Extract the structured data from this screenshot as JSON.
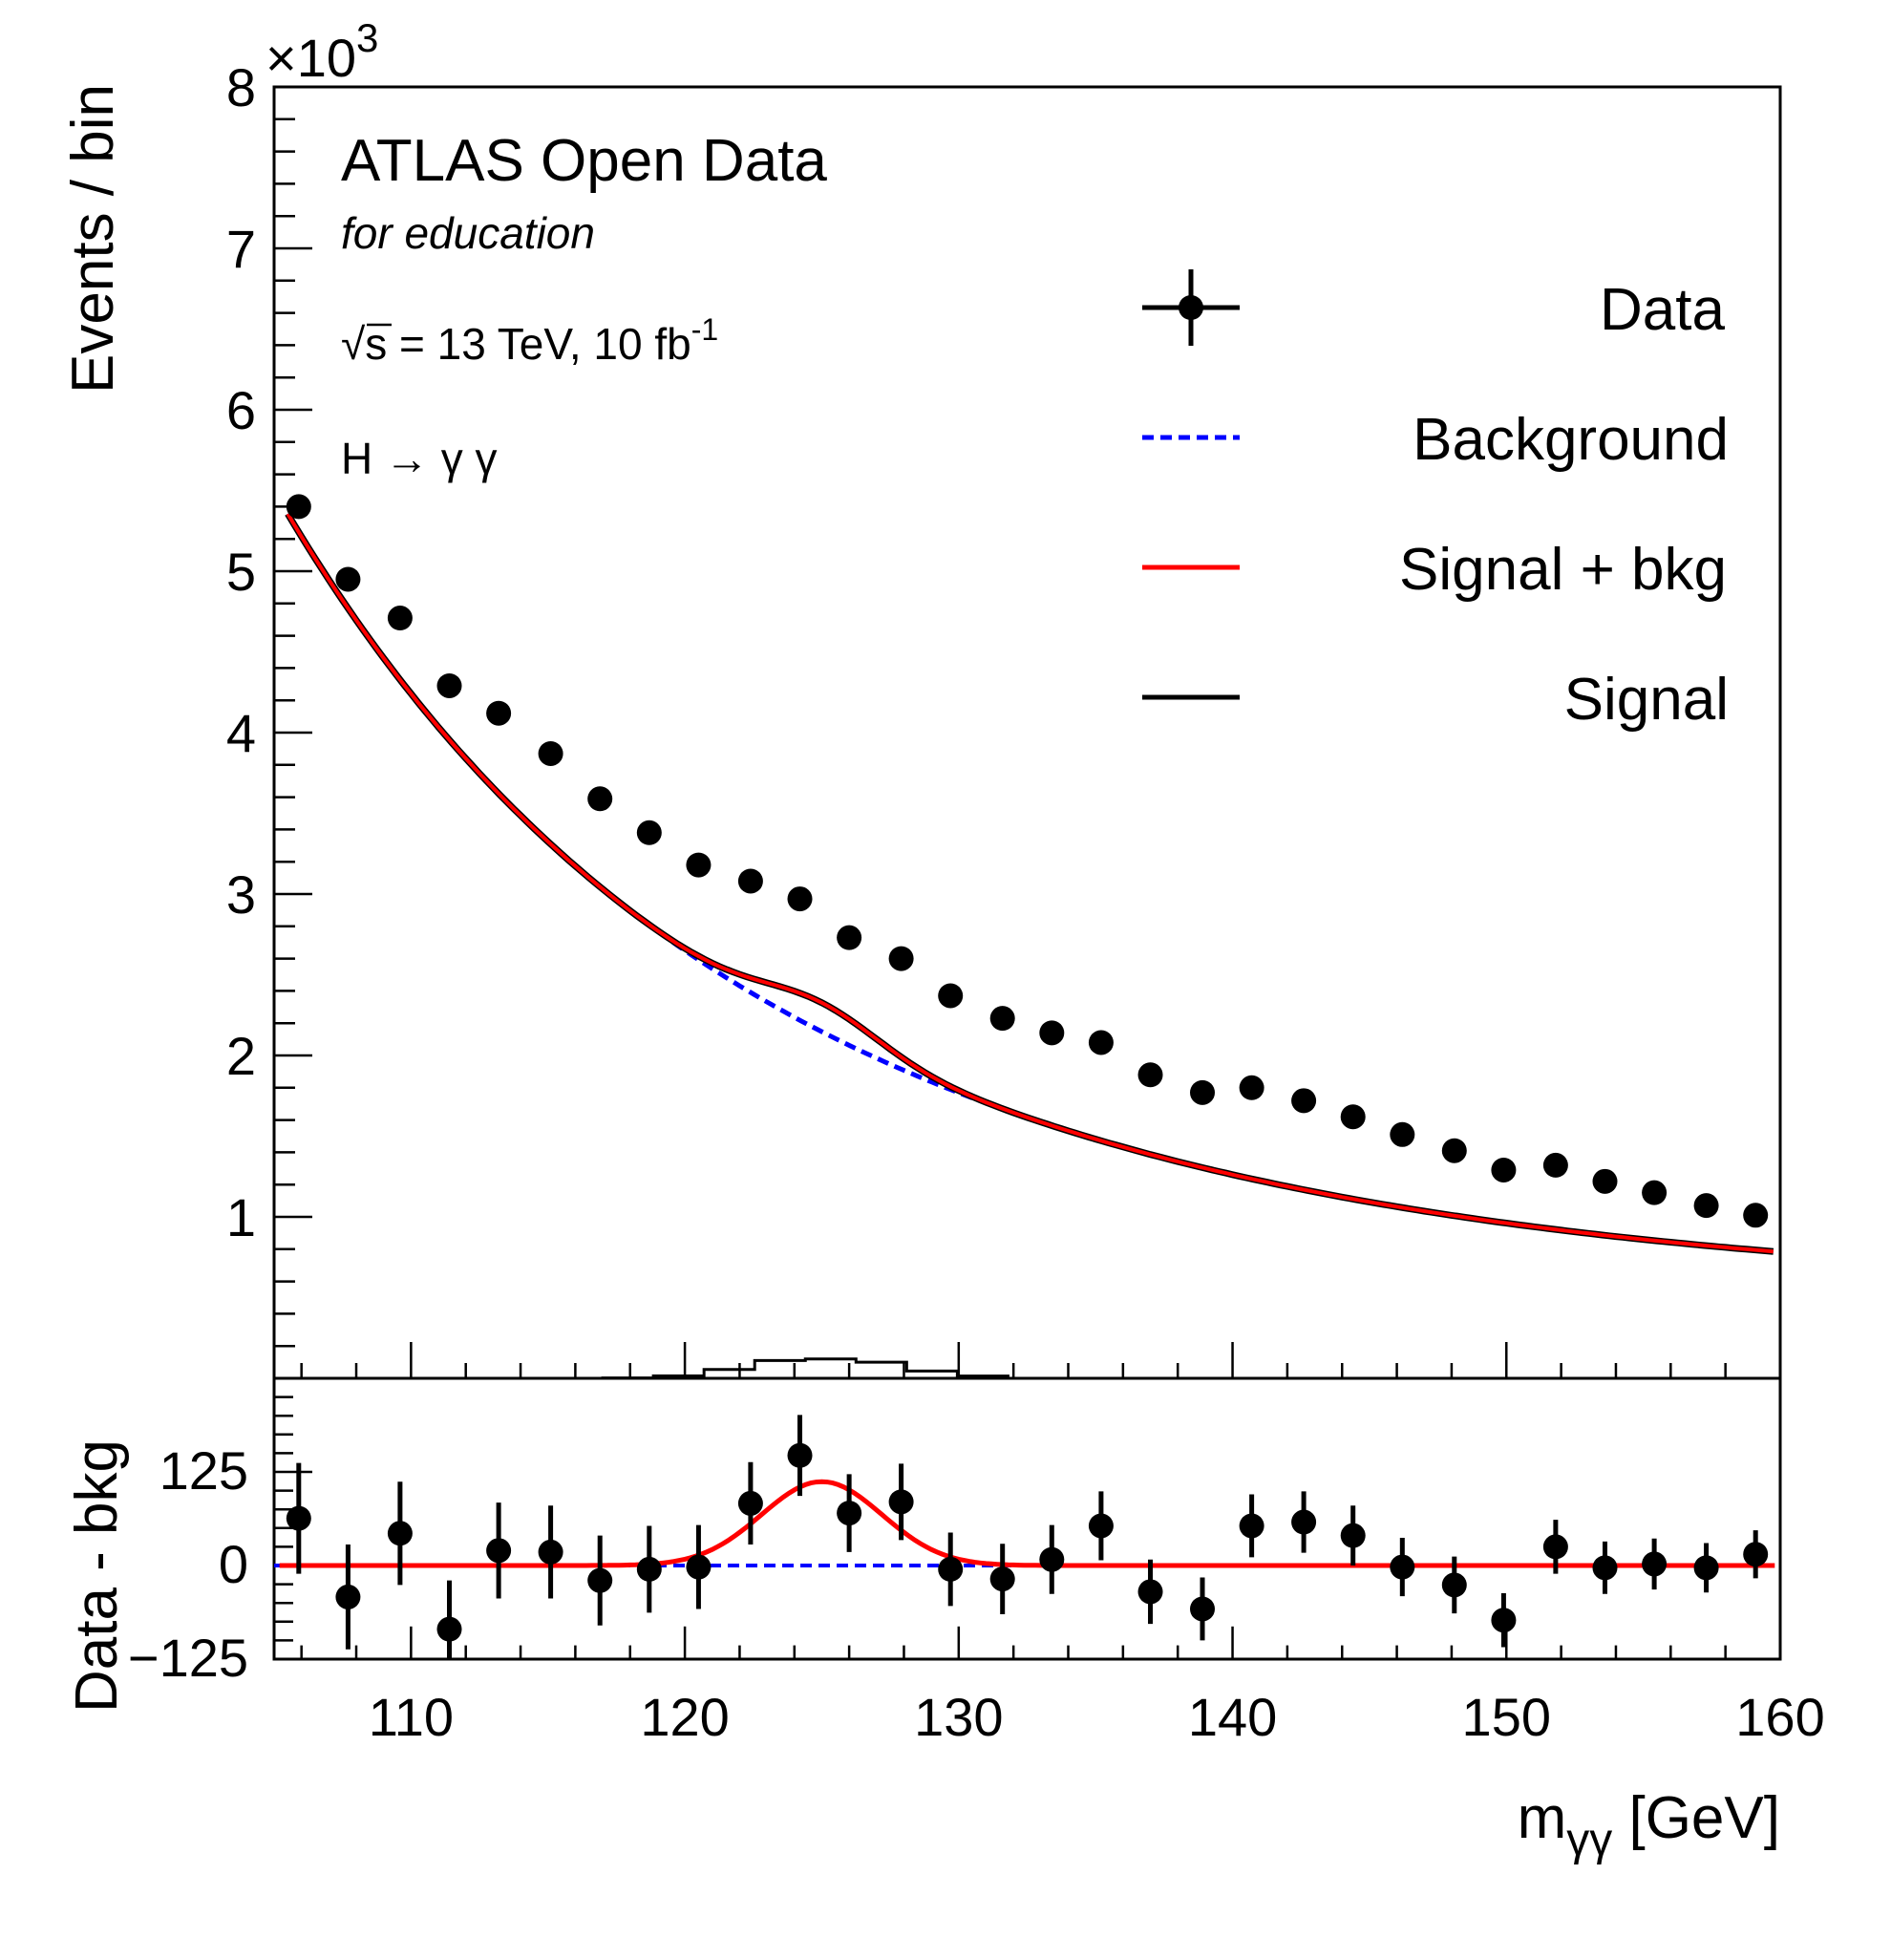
{
  "chart_data": [
    {
      "type": "scatter",
      "panel": "main",
      "ylabel": "Events / bin",
      "y_multiplier": "×10",
      "y_multiplier_exp": "3",
      "ylim": [
        0,
        8000
      ],
      "y_ticks": [
        1000,
        2000,
        3000,
        4000,
        5000,
        6000,
        7000,
        8000
      ],
      "y_tick_labels": [
        "1",
        "2",
        "3",
        "4",
        "5",
        "6",
        "7",
        "8"
      ],
      "xlim": [
        105,
        160
      ],
      "annotations": {
        "title": "ATLAS Open Data",
        "subtitle": "for education",
        "energy_root": "√",
        "energy_text": "s = 13 TeV, 10 fb",
        "energy_exp": "-1",
        "process": "H → γ γ"
      },
      "legend": {
        "data": "Data",
        "background": "Background",
        "signal_bkg": "Signal + bkg",
        "signal": "Signal"
      },
      "x": [
        105.9,
        107.7,
        109.6,
        111.4,
        113.2,
        115.1,
        116.9,
        118.7,
        120.5,
        122.4,
        124.2,
        126.0,
        127.9,
        129.7,
        131.6,
        133.4,
        135.2,
        137.0,
        138.9,
        140.7,
        142.6,
        144.4,
        146.2,
        148.1,
        149.9,
        151.8,
        153.6,
        155.4,
        157.3,
        159.1
      ],
      "data_values": [
        5400,
        4950,
        4710,
        4290,
        4120,
        3870,
        3590,
        3380,
        3180,
        3080,
        2970,
        2730,
        2600,
        2370,
        2230,
        2140,
        2080,
        1880,
        1770,
        1800,
        1720,
        1620,
        1510,
        1410,
        1290,
        1320,
        1220,
        1150,
        1070,
        1010
      ],
      "data_errors": [
        74,
        70,
        69,
        65,
        64,
        62,
        60,
        58,
        56,
        55,
        54,
        52,
        51,
        49,
        47,
        46,
        46,
        43,
        42,
        42,
        41,
        40,
        39,
        38,
        36,
        36,
        35,
        34,
        33,
        32
      ],
      "signal_bins": {
        "edges": [
          117.0,
          118.85,
          120.7,
          122.55,
          124.4,
          126.25,
          128.1,
          129.95,
          131.8
        ],
        "values": [
          2,
          15,
          55,
          110,
          120,
          100,
          45,
          14
        ]
      },
      "markers": {
        "data_color": "#000000",
        "background_color": "#0000ff",
        "signal_bkg_color": "#ff0000",
        "signal_color": "#000000"
      }
    },
    {
      "type": "scatter",
      "panel": "residual",
      "ylabel": "Data - bkg",
      "xlabel_main": "m",
      "xlabel_sub": "γγ",
      "xlabel_unit": " [GeV]",
      "xlim": [
        105,
        160
      ],
      "ylim": [
        -125,
        250
      ],
      "x_ticks": [
        110,
        120,
        130,
        140,
        150,
        160
      ],
      "x_tick_labels": [
        "110",
        "120",
        "130",
        "140",
        "150",
        "160"
      ],
      "y_ticks": [
        -125,
        0,
        125
      ],
      "y_tick_labels": [
        "−125",
        "0",
        "125"
      ],
      "signal_fit": {
        "peak_mass": 125.0,
        "amplitude": 112,
        "width": 2.2
      },
      "residual_values": [
        63,
        -42,
        43,
        -85,
        20,
        18,
        -20,
        -5,
        -2,
        83,
        147,
        70,
        85,
        -5,
        -18,
        8,
        53,
        -35,
        -58,
        53,
        58,
        40,
        -2,
        -26,
        -73,
        25,
        -3,
        2,
        -3,
        15
      ],
      "residual_errors": [
        74,
        70,
        69,
        65,
        64,
        62,
        60,
        58,
        56,
        55,
        54,
        52,
        51,
        49,
        47,
        46,
        46,
        43,
        42,
        42,
        41,
        40,
        39,
        38,
        36,
        36,
        35,
        34,
        33,
        32
      ]
    }
  ]
}
